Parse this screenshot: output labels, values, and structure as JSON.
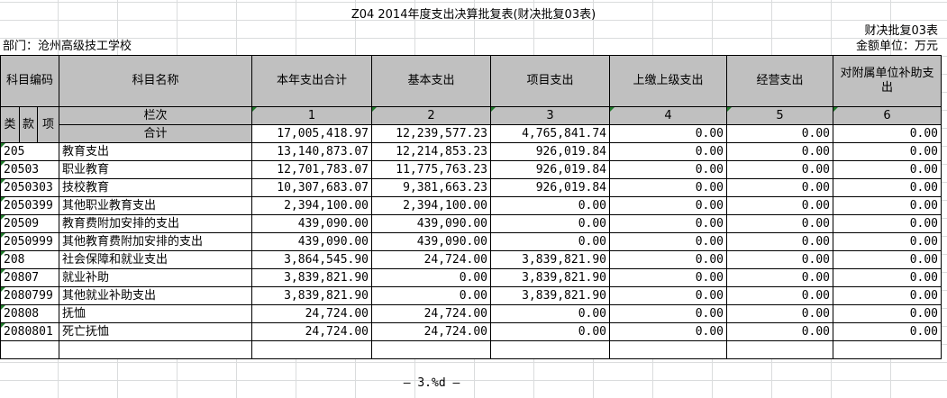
{
  "report": {
    "title": "Z04 2014年度支出决算批复表(财决批复03表)",
    "form_no": "财决批复03表",
    "department": "部门：沧州高级技工学校",
    "unit": "金额单位：万元"
  },
  "headers": {
    "code": "科目编码",
    "name": "科目名称",
    "total": "本年支出合计",
    "basic": "基本支出",
    "project": "项目支出",
    "upper": "上缴上级支出",
    "business": "经营支出",
    "subsidy": "对附属单位补助支出",
    "lei": "类",
    "kuan": "款",
    "xiang": "项",
    "lanci": "栏次",
    "col1": "1",
    "col2": "2",
    "col3": "3",
    "col4": "4",
    "col5": "5",
    "col6": "6"
  },
  "total_row": {
    "label": "合计",
    "c1": "17,005,418.97",
    "c2": "12,239,577.23",
    "c3": "4,765,841.74",
    "c4": "0.00",
    "c5": "0.00",
    "c6": "0.00"
  },
  "rows": [
    {
      "code": "205",
      "name": "教育支出",
      "c1": "13,140,873.07",
      "c2": "12,214,853.23",
      "c3": "926,019.84",
      "c4": "0.00",
      "c5": "0.00",
      "c6": "0.00"
    },
    {
      "code": "20503",
      "name": "职业教育",
      "c1": "12,701,783.07",
      "c2": "11,775,763.23",
      "c3": "926,019.84",
      "c4": "0.00",
      "c5": "0.00",
      "c6": "0.00"
    },
    {
      "code": "2050303",
      "name": "技校教育",
      "c1": "10,307,683.07",
      "c2": "9,381,663.23",
      "c3": "926,019.84",
      "c4": "0.00",
      "c5": "0.00",
      "c6": "0.00"
    },
    {
      "code": "2050399",
      "name": "其他职业教育支出",
      "c1": "2,394,100.00",
      "c2": "2,394,100.00",
      "c3": "0.00",
      "c4": "0.00",
      "c5": "0.00",
      "c6": "0.00"
    },
    {
      "code": "20509",
      "name": "教育费附加安排的支出",
      "c1": "439,090.00",
      "c2": "439,090.00",
      "c3": "0.00",
      "c4": "0.00",
      "c5": "0.00",
      "c6": "0.00"
    },
    {
      "code": "2050999",
      "name": "其他教育费附加安排的支出",
      "c1": "439,090.00",
      "c2": "439,090.00",
      "c3": "0.00",
      "c4": "0.00",
      "c5": "0.00",
      "c6": "0.00"
    },
    {
      "code": "208",
      "name": "社会保障和就业支出",
      "c1": "3,864,545.90",
      "c2": "24,724.00",
      "c3": "3,839,821.90",
      "c4": "0.00",
      "c5": "0.00",
      "c6": "0.00"
    },
    {
      "code": "20807",
      "name": "就业补助",
      "c1": "3,839,821.90",
      "c2": "0.00",
      "c3": "3,839,821.90",
      "c4": "0.00",
      "c5": "0.00",
      "c6": "0.00"
    },
    {
      "code": "2080799",
      "name": "其他就业补助支出",
      "c1": "3,839,821.90",
      "c2": "0.00",
      "c3": "3,839,821.90",
      "c4": "0.00",
      "c5": "0.00",
      "c6": "0.00"
    },
    {
      "code": "20808",
      "name": "抚恤",
      "c1": "24,724.00",
      "c2": "24,724.00",
      "c3": "0.00",
      "c4": "0.00",
      "c5": "0.00",
      "c6": "0.00"
    },
    {
      "code": "2080801",
      "name": "死亡抚恤",
      "c1": "24,724.00",
      "c2": "24,724.00",
      "c3": "0.00",
      "c4": "0.00",
      "c5": "0.00",
      "c6": "0.00"
    }
  ],
  "footer": "— 3.%d —"
}
